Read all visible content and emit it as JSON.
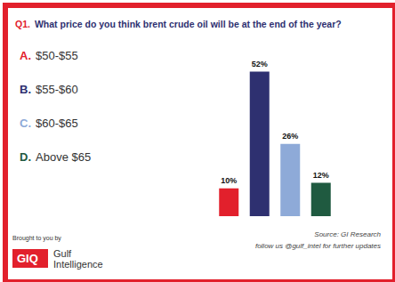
{
  "chart_data": {
    "type": "bar",
    "title": "Q1. What price do you think brent crude oil will be at the end of the year?",
    "categories": [
      "$50-$55",
      "$55-$60",
      "$60-$65",
      "Above $65"
    ],
    "category_letters": [
      "A.",
      "B.",
      "C.",
      "D."
    ],
    "values": [
      10,
      52,
      26,
      12
    ],
    "value_labels": [
      "10%",
      "52%",
      "26%",
      "12%"
    ],
    "colors": [
      "#e2202c",
      "#2e3070",
      "#8eaad8",
      "#1f5a40"
    ],
    "ylim": [
      0,
      55
    ],
    "grid": false,
    "data_labels": true,
    "tick_labels": false,
    "source": "Source: GI Research",
    "footer": "follow us @gulf_intel for further updates",
    "sponsor_caption": "Brought to you by",
    "sponsor_name": "Gulf Intelligence",
    "logo_text": "GIQ"
  }
}
